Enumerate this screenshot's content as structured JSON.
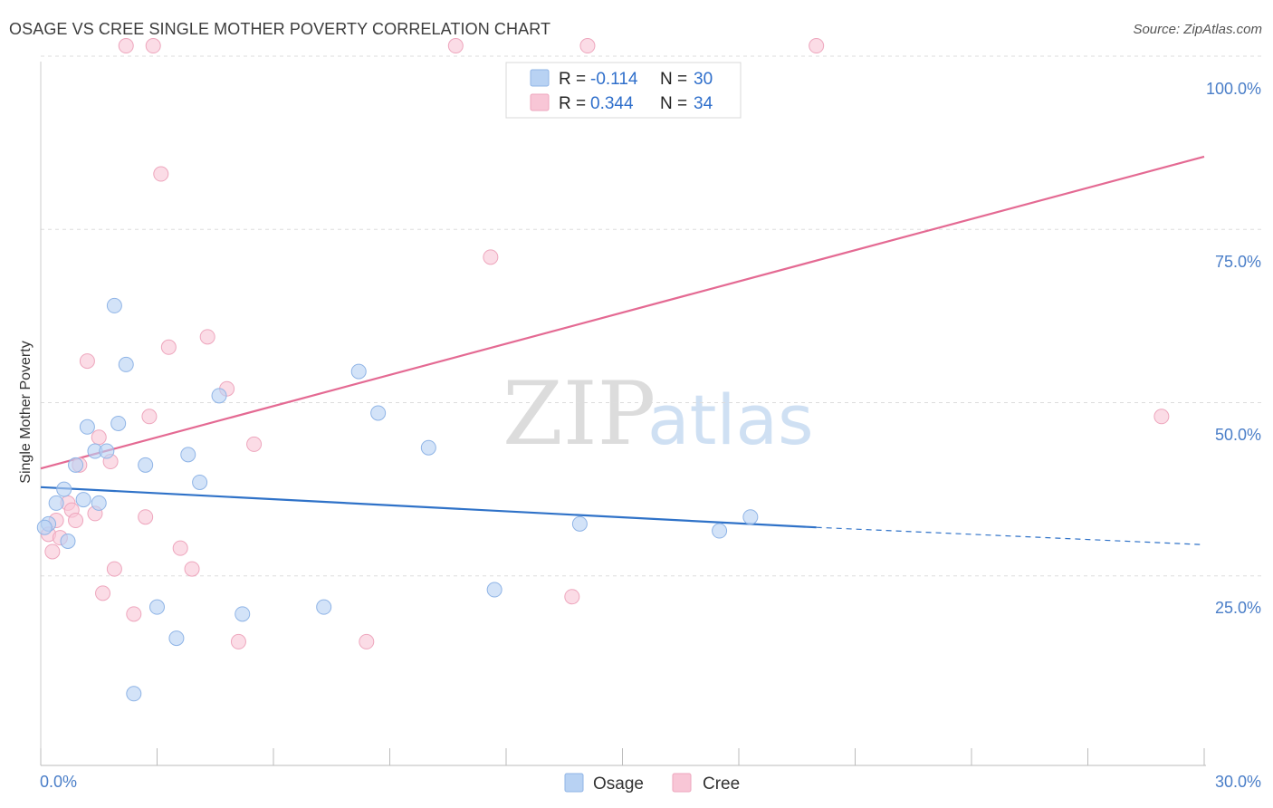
{
  "header": {
    "title": "OSAGE VS CREE SINGLE MOTHER POVERTY CORRELATION CHART",
    "source": "Source: ZipAtlas.com"
  },
  "legend": {
    "r_label": "R =",
    "n_label": "N =",
    "osage_r": "-0.114",
    "osage_n": "30",
    "cree_r": "0.344",
    "cree_n": "34"
  },
  "bottom_legend": {
    "osage": "Osage",
    "cree": "Cree"
  },
  "watermark": {
    "zip": "ZIP",
    "atlas": "atlas"
  },
  "colors": {
    "osage_fill": "#b8d2f3",
    "osage_stroke": "#8fb4e6",
    "osage_line": "#2f72c8",
    "cree_fill": "#f8c6d6",
    "cree_stroke": "#eea6bd",
    "cree_line": "#e46a93",
    "grid": "#dddddd",
    "tick_text": "#4a7ec8"
  },
  "chart_data": {
    "type": "scatter",
    "title": "OSAGE VS CREE SINGLE MOTHER POVERTY CORRELATION CHART",
    "xlabel": "",
    "ylabel": "Single Mother Poverty",
    "xlim": [
      0,
      30
    ],
    "ylim": [
      0,
      100
    ],
    "x_tick_labels": [
      "0.0%",
      "30.0%"
    ],
    "y_tick_labels": [
      "100.0%",
      "75.0%",
      "50.0%",
      "25.0%"
    ],
    "y_tick_values": [
      100,
      75,
      50,
      25
    ],
    "series": [
      {
        "name": "Osage",
        "points": [
          [
            0.2,
            32.5
          ],
          [
            0.4,
            35.5
          ],
          [
            0.6,
            37.5
          ],
          [
            0.7,
            30.0
          ],
          [
            0.9,
            41.0
          ],
          [
            1.1,
            36.0
          ],
          [
            1.2,
            46.5
          ],
          [
            1.4,
            43.0
          ],
          [
            1.5,
            35.5
          ],
          [
            1.7,
            43.0
          ],
          [
            1.9,
            64.0
          ],
          [
            2.0,
            47.0
          ],
          [
            2.2,
            55.5
          ],
          [
            2.4,
            8.0
          ],
          [
            2.7,
            41.0
          ],
          [
            3.0,
            20.5
          ],
          [
            3.5,
            16.0
          ],
          [
            3.8,
            42.5
          ],
          [
            4.1,
            38.5
          ],
          [
            4.6,
            51.0
          ],
          [
            5.2,
            19.5
          ],
          [
            7.3,
            20.5
          ],
          [
            8.2,
            54.5
          ],
          [
            8.7,
            48.5
          ],
          [
            10.0,
            43.5
          ],
          [
            11.7,
            23.0
          ],
          [
            13.9,
            32.5
          ],
          [
            17.5,
            31.5
          ],
          [
            18.3,
            33.5
          ],
          [
            0.1,
            32.0
          ]
        ],
        "trend": {
          "x0": 0.0,
          "y0": 37.8,
          "x1": 20.0,
          "y1": 32.0,
          "dash_to_x": 30.0,
          "dash_to_y": 29.5
        }
      },
      {
        "name": "Cree",
        "points": [
          [
            0.2,
            31.0
          ],
          [
            0.3,
            28.5
          ],
          [
            0.4,
            33.0
          ],
          [
            0.5,
            30.5
          ],
          [
            0.7,
            35.5
          ],
          [
            0.8,
            34.5
          ],
          [
            0.9,
            33.0
          ],
          [
            1.0,
            41.0
          ],
          [
            1.2,
            56.0
          ],
          [
            1.4,
            34.0
          ],
          [
            1.5,
            45.0
          ],
          [
            1.6,
            22.5
          ],
          [
            1.8,
            41.5
          ],
          [
            1.9,
            26.0
          ],
          [
            2.2,
            101.5
          ],
          [
            2.4,
            19.5
          ],
          [
            2.7,
            33.5
          ],
          [
            2.8,
            48.0
          ],
          [
            2.9,
            101.5
          ],
          [
            3.1,
            83.0
          ],
          [
            3.3,
            58.0
          ],
          [
            3.6,
            29.0
          ],
          [
            3.9,
            26.0
          ],
          [
            4.3,
            59.5
          ],
          [
            4.8,
            52.0
          ],
          [
            5.1,
            15.5
          ],
          [
            5.5,
            44.0
          ],
          [
            8.4,
            15.5
          ],
          [
            10.7,
            101.5
          ],
          [
            11.6,
            71.0
          ],
          [
            13.7,
            22.0
          ],
          [
            14.1,
            101.5
          ],
          [
            20.0,
            101.5
          ],
          [
            28.9,
            48.0
          ]
        ],
        "trend": {
          "x0": 0.0,
          "y0": 40.5,
          "x1": 30.0,
          "y1": 85.5
        }
      }
    ],
    "grid": true,
    "legend_position": "top-center"
  }
}
